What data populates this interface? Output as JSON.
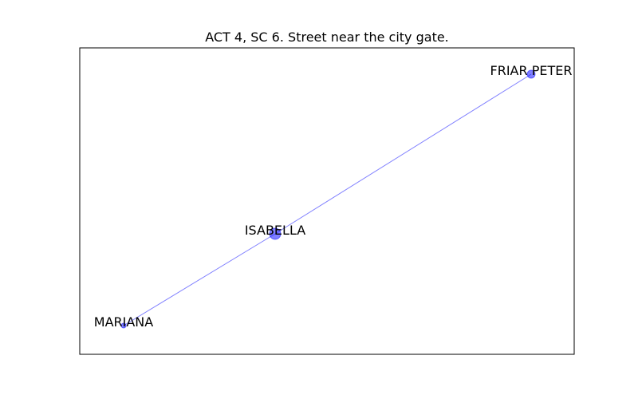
{
  "title": "ACT 4, SC 6. Street near the city gate.",
  "graph": {
    "nodes": [
      {
        "id": "mariana",
        "label": "MARIANA",
        "size": 1
      },
      {
        "id": "isabella",
        "label": "ISABELLA",
        "size": 3
      },
      {
        "id": "friar-peter",
        "label": "FRIAR PETER",
        "size": 2
      }
    ],
    "edges": [
      {
        "source": "mariana",
        "target": "isabella"
      },
      {
        "source": "isabella",
        "target": "friar-peter"
      }
    ]
  },
  "colors": {
    "node_fill": "#0000ff",
    "edge_stroke": "#0000ff",
    "axes_border": "#000000",
    "background": "#ffffff"
  }
}
